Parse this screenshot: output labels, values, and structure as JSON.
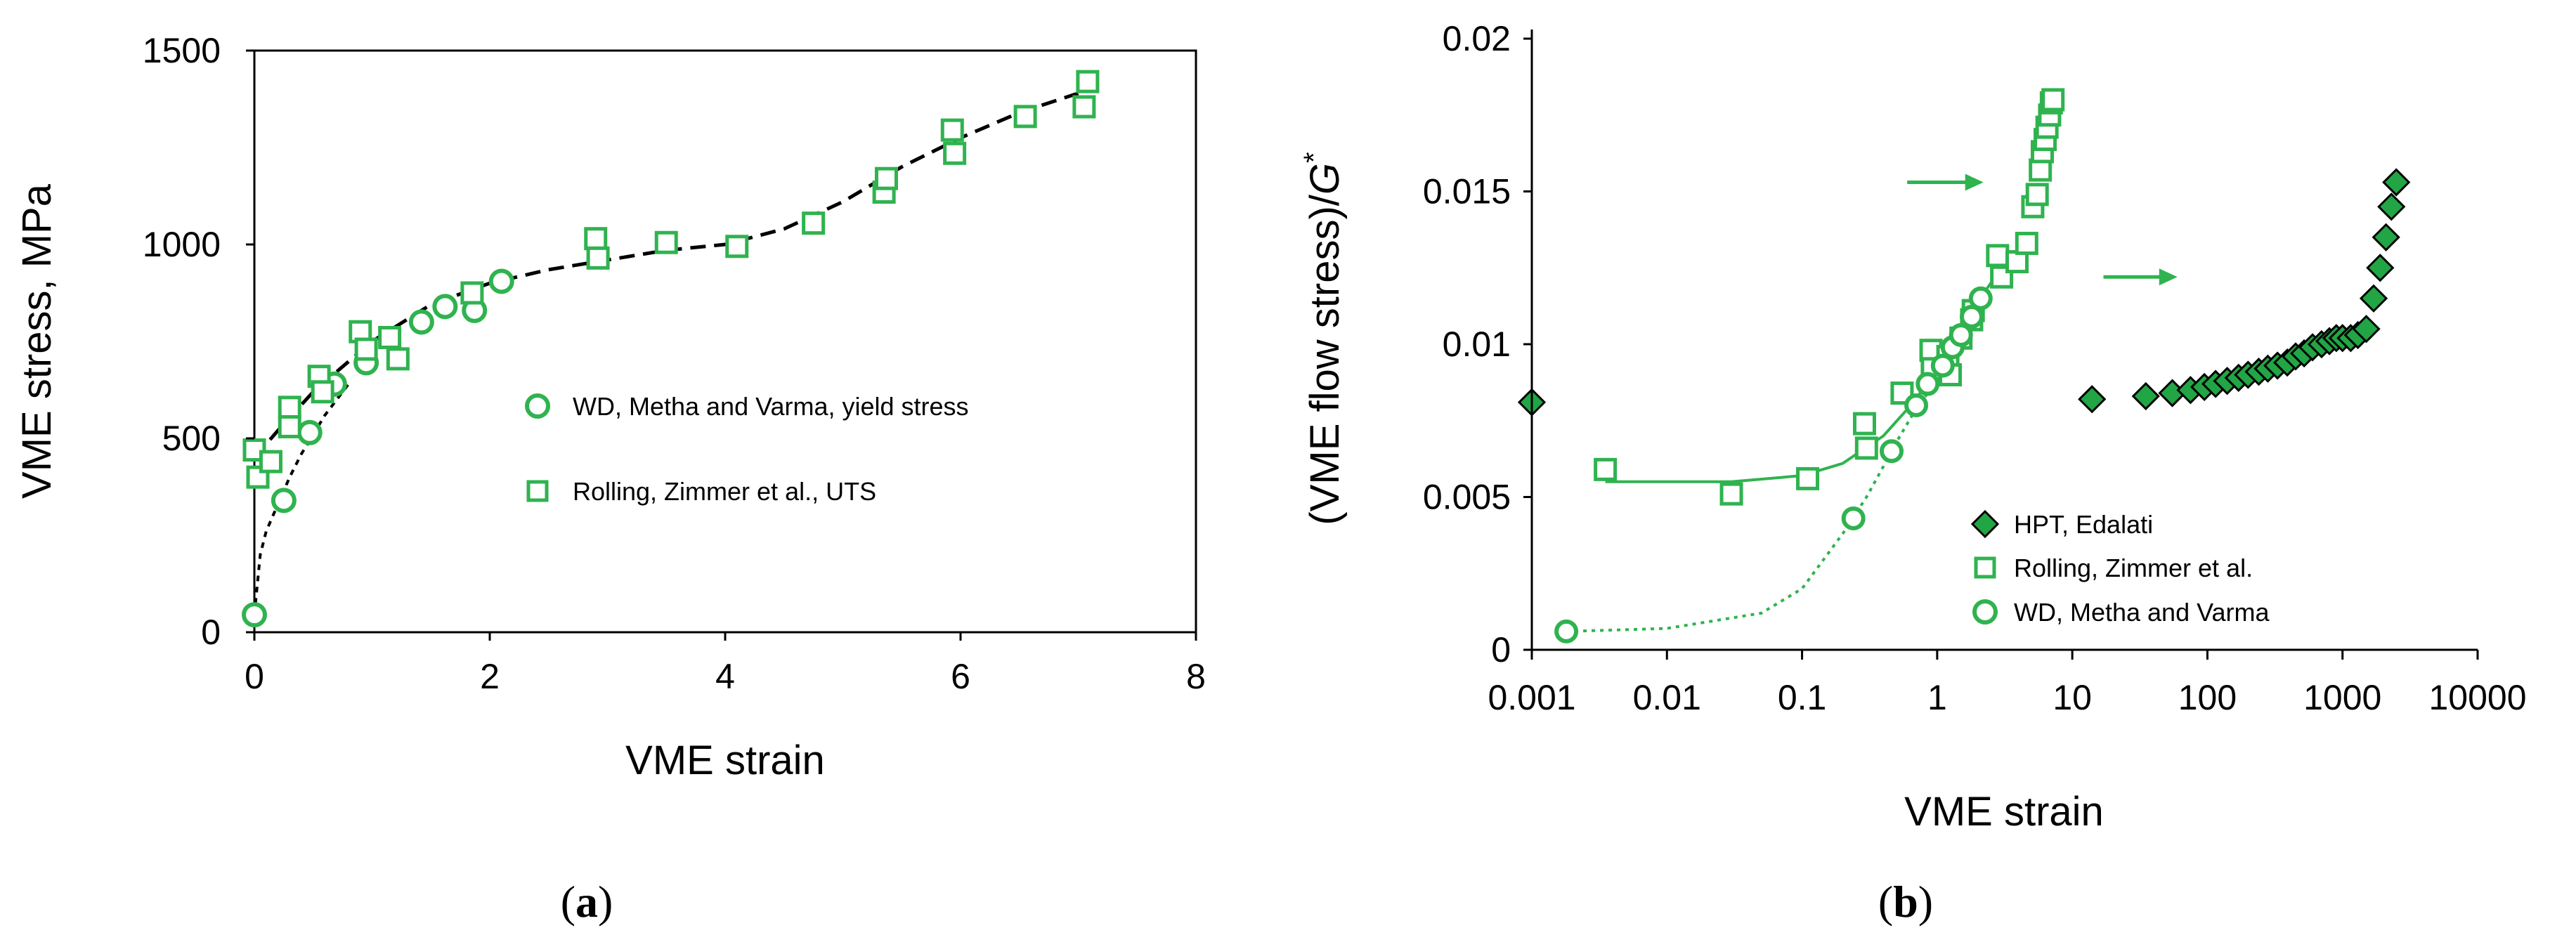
{
  "colors": {
    "green": "#2fb34f",
    "dark_green": "#22a544",
    "light_green": "#c6e8cf",
    "black": "#000000",
    "white": "#ffffff"
  },
  "chart_data": [
    {
      "type": "scatter",
      "panel": "a",
      "caption_letter": "a",
      "xlabel": "VME strain",
      "ylabel": "VME stress, MPa",
      "xlim": [
        0,
        8
      ],
      "ylim": [
        0,
        1500
      ],
      "xticks": [
        0,
        2,
        4,
        6,
        8
      ],
      "yticks": [
        0,
        500,
        1000,
        1500
      ],
      "xtick_labels": [
        "0",
        "2",
        "4",
        "6",
        "8"
      ],
      "ytick_labels": [
        "0",
        "500",
        "1000",
        "1500"
      ],
      "legend_position": "center-right",
      "series": [
        {
          "name": "WD, Metha and Varma, yield stress",
          "marker": "circle",
          "x": [
            0.0,
            0.25,
            0.47,
            0.68,
            0.95,
            1.42,
            1.62,
            1.87,
            2.1
          ],
          "y": [
            45,
            340,
            515,
            640,
            695,
            800,
            840,
            830,
            905
          ]
        },
        {
          "name": "Rolling, Zimmer et al., UTS",
          "marker": "square",
          "x": [
            0.0,
            0.03,
            0.14,
            0.3,
            0.3,
            0.55,
            0.58,
            0.9,
            0.95,
            1.15,
            1.22,
            1.85,
            2.9,
            2.92,
            3.5,
            4.1,
            4.75,
            5.35,
            5.37,
            5.93,
            5.95,
            6.55,
            7.05,
            7.08
          ],
          "y": [
            470,
            400,
            440,
            580,
            530,
            660,
            620,
            775,
            730,
            760,
            705,
            875,
            1015,
            965,
            1005,
            995,
            1055,
            1135,
            1170,
            1295,
            1235,
            1330,
            1355,
            1420
          ]
        }
      ],
      "fit_lines": [
        {
          "name": "WD fit",
          "style": "dotted",
          "x": [
            0.0,
            0.05,
            0.1,
            0.2,
            0.3,
            0.4,
            0.5,
            0.6,
            0.7,
            0.8
          ],
          "y": [
            45,
            200,
            260,
            330,
            400,
            460,
            510,
            560,
            600,
            640
          ]
        },
        {
          "name": "Rolling fit",
          "style": "dashed",
          "x": [
            0.0,
            0.2,
            0.5,
            1.0,
            1.5,
            2.0,
            2.5,
            3.0,
            3.5,
            4.0,
            4.5,
            5.0,
            5.5,
            6.0,
            6.5,
            7.0
          ],
          "y": [
            450,
            520,
            620,
            750,
            845,
            900,
            935,
            960,
            985,
            1000,
            1040,
            1110,
            1200,
            1275,
            1340,
            1390
          ]
        }
      ]
    },
    {
      "type": "scatter",
      "panel": "b",
      "caption_letter": "b",
      "xlabel": "VME strain",
      "ylabel_prefix": "(VME flow stress)/",
      "ylabel_italic": "G",
      "ylabel_suffix": "*",
      "xscale": "log",
      "xlim": [
        0.001,
        10000
      ],
      "ylim": [
        0,
        0.02
      ],
      "xticks": [
        0.001,
        0.01,
        0.1,
        1,
        10,
        100,
        1000,
        10000
      ],
      "yticks": [
        0,
        0.005,
        0.01,
        0.015,
        0.02
      ],
      "xtick_labels": [
        "0.001",
        "0.01",
        "0.1",
        "1",
        "10",
        "100",
        "1000",
        "10000"
      ],
      "ytick_labels": [
        "0",
        "0.005",
        "0.01",
        "0.015",
        "0.02"
      ],
      "legend_position": "bottom-center",
      "series": [
        {
          "name": "HPT, Edalati",
          "marker": "diamond",
          "x": [
            0.001,
            14,
            35,
            55,
            75,
            95,
            115,
            140,
            170,
            200,
            240,
            280,
            330,
            390,
            450,
            520,
            600,
            700,
            800,
            900,
            1000,
            1150,
            1300,
            1500,
            1700,
            1900,
            2100,
            2300,
            2500
          ],
          "y": [
            0.0081,
            0.0082,
            0.0083,
            0.0084,
            0.0085,
            0.0086,
            0.0087,
            0.0088,
            0.0089,
            0.009,
            0.0091,
            0.0092,
            0.0093,
            0.0094,
            0.0096,
            0.0097,
            0.0099,
            0.01,
            0.0101,
            0.0102,
            0.0102,
            0.0102,
            0.0103,
            0.0105,
            0.0115,
            0.0125,
            0.0135,
            0.0145,
            0.0153
          ]
        },
        {
          "name": "Rolling, Zimmer et al.",
          "marker": "square",
          "x": [
            0.0035,
            0.03,
            0.11,
            0.29,
            0.3,
            0.55,
            0.9,
            0.92,
            1.2,
            1.25,
            1.5,
            1.8,
            1.85,
            2.8,
            3.0,
            3.9,
            4.6,
            5.1,
            5.5,
            5.8,
            6.0,
            6.3,
            6.5,
            6.8,
            7.0,
            7.2
          ],
          "y": [
            0.0059,
            0.0051,
            0.0056,
            0.0074,
            0.0066,
            0.0084,
            0.0098,
            0.0092,
            0.0096,
            0.009,
            0.0102,
            0.0108,
            0.0111,
            0.0129,
            0.0122,
            0.0127,
            0.0133,
            0.0145,
            0.0149,
            0.0157,
            0.0163,
            0.0167,
            0.0171,
            0.0175,
            0.0179,
            0.018
          ]
        },
        {
          "name": "WD, Metha and Varma",
          "marker": "circle",
          "x": [
            0.0018,
            0.24,
            0.46,
            0.7,
            0.85,
            1.1,
            1.3,
            1.5,
            1.8,
            2.1
          ],
          "y": [
            0.0006,
            0.0043,
            0.0065,
            0.008,
            0.0087,
            0.0093,
            0.0099,
            0.0103,
            0.0109,
            0.0115
          ]
        }
      ],
      "fit_lines": [
        {
          "name": "HPT flat",
          "style": "solid-light",
          "x": [
            0.001,
            10
          ],
          "y": [
            0.0081,
            0.0081
          ]
        },
        {
          "name": "Rolling fit",
          "style": "solid",
          "x": [
            0.0035,
            0.01,
            0.03,
            0.1,
            0.2,
            0.4,
            0.7,
            1.0,
            1.5,
            2.0,
            3.0
          ],
          "y": [
            0.0055,
            0.0055,
            0.0055,
            0.0057,
            0.0061,
            0.007,
            0.0082,
            0.0093,
            0.0105,
            0.0114,
            0.0125
          ]
        },
        {
          "name": "WD fit",
          "style": "dotted",
          "x": [
            0.0018,
            0.01,
            0.05,
            0.1,
            0.2,
            0.3,
            0.4,
            0.5,
            0.7,
            1.0
          ],
          "y": [
            0.0006,
            0.0007,
            0.0012,
            0.002,
            0.0038,
            0.005,
            0.006,
            0.0068,
            0.0079,
            0.0088
          ]
        }
      ],
      "annotations": [
        {
          "type": "arrow",
          "direction": "right",
          "x_from": 0.6,
          "x_to": 2.2,
          "y": 0.0153
        },
        {
          "type": "arrow",
          "direction": "right",
          "x_from": 17,
          "x_to": 60,
          "y": 0.0122
        }
      ]
    }
  ]
}
